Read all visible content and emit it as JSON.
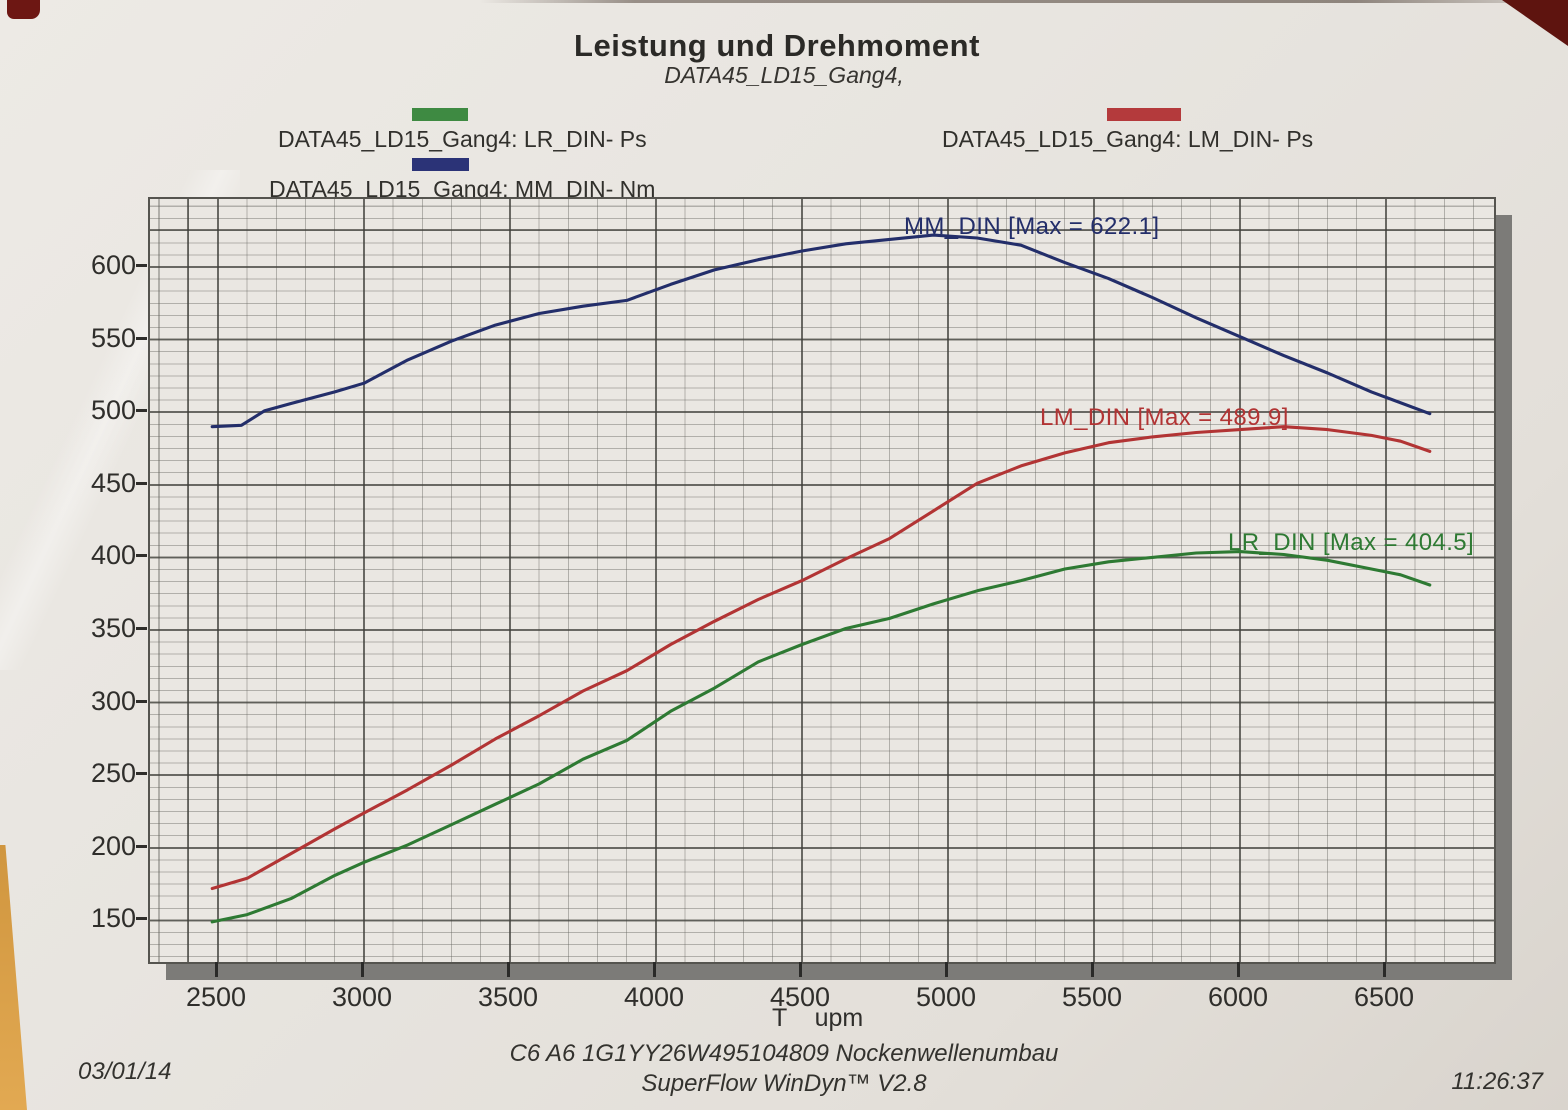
{
  "page": {
    "title": "Leistung und Drehmoment",
    "subtitle": "DATA45_LD15_Gang4,",
    "footer_line1": "C6 A6 1G1YY26W495104809 Nockenwellenumbau",
    "footer_line2": "SuperFlow WinDyn™ V2.8",
    "date": "03/01/14",
    "time": "11:26:37"
  },
  "legend": {
    "items": [
      {
        "label": "DATA45_LD15_Gang4: LR_DIN-  Ps",
        "color": "#3e8a42"
      },
      {
        "label": "DATA45_LD15_Gang4: MM_DIN-  Nm",
        "color": "#2b3377"
      },
      {
        "label": "DATA45_LD15_Gang4: LM_DIN-  Ps",
        "color": "#b43a3c"
      }
    ]
  },
  "chart_data": {
    "type": "line",
    "title": "Leistung und Drehmoment",
    "xlabel": "T    upm",
    "ylabel": "",
    "grid": true,
    "xticks": [
      2500,
      3000,
      3500,
      4000,
      4500,
      5000,
      5500,
      6000,
      6500
    ],
    "yticks": [
      150,
      200,
      250,
      300,
      350,
      400,
      450,
      500,
      550,
      600
    ],
    "xlim": [
      2270,
      6870
    ],
    "ylim": [
      121,
      647
    ],
    "series": [
      {
        "name": "MM_DIN",
        "unit": "Nm",
        "max": 622.1,
        "annotation": "MM_DIN [Max = 622.1]",
        "color": "#232e6a",
        "points": [
          [
            2480,
            490
          ],
          [
            2580,
            491
          ],
          [
            2660,
            501
          ],
          [
            2750,
            506
          ],
          [
            2900,
            514
          ],
          [
            3000,
            520
          ],
          [
            3150,
            536
          ],
          [
            3300,
            549
          ],
          [
            3450,
            560
          ],
          [
            3600,
            568
          ],
          [
            3750,
            573
          ],
          [
            3900,
            577
          ],
          [
            4050,
            588
          ],
          [
            4200,
            598
          ],
          [
            4350,
            605
          ],
          [
            4500,
            611
          ],
          [
            4650,
            616
          ],
          [
            4800,
            619
          ],
          [
            4950,
            622
          ],
          [
            5100,
            620
          ],
          [
            5250,
            615
          ],
          [
            5400,
            603
          ],
          [
            5550,
            592
          ],
          [
            5700,
            579
          ],
          [
            5850,
            565
          ],
          [
            6000,
            552
          ],
          [
            6150,
            539
          ],
          [
            6300,
            527
          ],
          [
            6450,
            514
          ],
          [
            6650,
            499
          ]
        ]
      },
      {
        "name": "LM_DIN",
        "unit": "Ps",
        "max": 489.9,
        "annotation": "LM_DIN [Max = 489.9]",
        "color": "#b23434",
        "points": [
          [
            2480,
            172
          ],
          [
            2600,
            179
          ],
          [
            2750,
            196
          ],
          [
            2900,
            213
          ],
          [
            3000,
            224
          ],
          [
            3150,
            240
          ],
          [
            3300,
            257
          ],
          [
            3450,
            275
          ],
          [
            3600,
            291
          ],
          [
            3750,
            308
          ],
          [
            3900,
            322
          ],
          [
            4050,
            340
          ],
          [
            4200,
            356
          ],
          [
            4350,
            371
          ],
          [
            4500,
            384
          ],
          [
            4650,
            399
          ],
          [
            4800,
            413
          ],
          [
            4950,
            432
          ],
          [
            5100,
            451
          ],
          [
            5250,
            463
          ],
          [
            5400,
            472
          ],
          [
            5550,
            479
          ],
          [
            5700,
            483
          ],
          [
            5850,
            486
          ],
          [
            6000,
            488
          ],
          [
            6150,
            490
          ],
          [
            6300,
            488
          ],
          [
            6450,
            484
          ],
          [
            6550,
            480
          ],
          [
            6650,
            473
          ]
        ]
      },
      {
        "name": "LR_DIN",
        "unit": "Ps",
        "max": 404.5,
        "annotation": "LR_DIN [Max = 404.5]",
        "color": "#2e7a33",
        "points": [
          [
            2480,
            149
          ],
          [
            2600,
            154
          ],
          [
            2750,
            165
          ],
          [
            2900,
            181
          ],
          [
            3000,
            190
          ],
          [
            3150,
            202
          ],
          [
            3300,
            216
          ],
          [
            3450,
            230
          ],
          [
            3600,
            244
          ],
          [
            3750,
            261
          ],
          [
            3900,
            274
          ],
          [
            4050,
            294
          ],
          [
            4200,
            310
          ],
          [
            4350,
            328
          ],
          [
            4500,
            340
          ],
          [
            4650,
            351
          ],
          [
            4800,
            358
          ],
          [
            4950,
            368
          ],
          [
            5100,
            377
          ],
          [
            5250,
            384
          ],
          [
            5400,
            392
          ],
          [
            5550,
            397
          ],
          [
            5700,
            400
          ],
          [
            5850,
            403
          ],
          [
            6000,
            404
          ],
          [
            6150,
            402
          ],
          [
            6300,
            398
          ],
          [
            6450,
            392
          ],
          [
            6550,
            388
          ],
          [
            6650,
            381
          ]
        ]
      }
    ]
  }
}
